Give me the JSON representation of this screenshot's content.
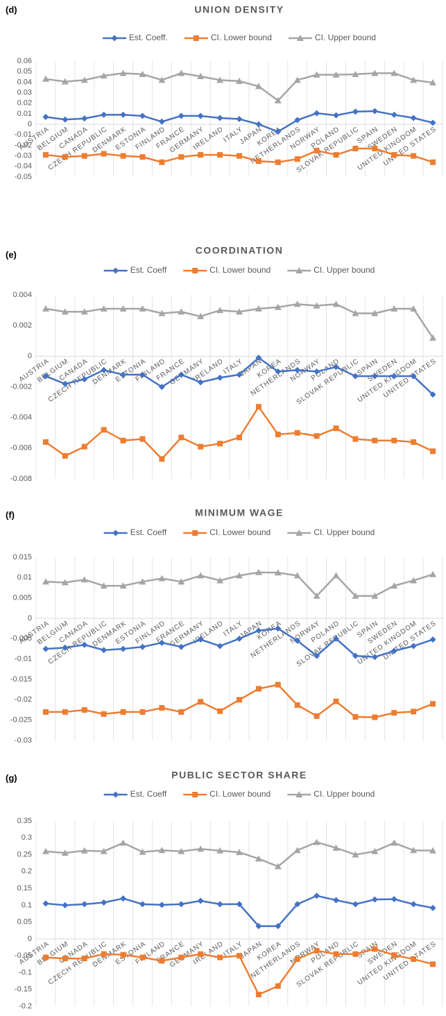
{
  "chart_data": [
    {
      "type": "line",
      "label": "(d)",
      "title": "UNION DENSITY",
      "categories": [
        "AUSTRIA",
        "BELGIUM",
        "CANADA",
        "CZECH REPUBLIC",
        "DENMARK",
        "ESTONIA",
        "FINLAND",
        "FRANCE",
        "GERMANY",
        "IRELAND",
        "ITALY",
        "JAPAN",
        "KOREA",
        "NETHERLANDS",
        "NORWAY",
        "POLAND",
        "SLOVAK REPUBLIC",
        "SPAIN",
        "SWEDEN",
        "UNITED KINGDOM",
        "UNITED STATES"
      ],
      "series": [
        {
          "name": "Est. Coeff.",
          "color": "#4472c4",
          "marker": "diamond",
          "values": [
            0.007,
            0.0045,
            0.0055,
            0.009,
            0.009,
            0.008,
            0.0025,
            0.008,
            0.008,
            0.006,
            0.005,
            0.0,
            -0.007,
            0.004,
            0.0105,
            0.0085,
            0.012,
            0.0125,
            0.009,
            0.006,
            0.0015
          ]
        },
        {
          "name": "CI. Lower bound",
          "color": "#ed7d31",
          "marker": "square",
          "values": [
            -0.029,
            -0.031,
            -0.03,
            -0.028,
            -0.03,
            -0.031,
            -0.036,
            -0.031,
            -0.029,
            -0.029,
            -0.03,
            -0.035,
            -0.036,
            -0.033,
            -0.025,
            -0.029,
            -0.023,
            -0.023,
            -0.029,
            -0.03,
            -0.036
          ]
        },
        {
          "name": "CI. Upper bound",
          "color": "#a5a5a5",
          "marker": "triangle",
          "values": [
            0.043,
            0.0405,
            0.042,
            0.046,
            0.0485,
            0.0475,
            0.042,
            0.0485,
            0.0455,
            0.042,
            0.041,
            0.036,
            0.0225,
            0.042,
            0.047,
            0.047,
            0.0475,
            0.0485,
            0.0485,
            0.042,
            0.0395
          ]
        }
      ],
      "ylim": [
        -0.05,
        0.06
      ],
      "yticks": [
        -0.05,
        -0.04,
        -0.03,
        -0.02,
        -0.01,
        0,
        0.01,
        0.02,
        0.03,
        0.04,
        0.05,
        0.06
      ],
      "vertical_grid": true
    },
    {
      "type": "line",
      "label": "(e)",
      "title": "COORDINATION",
      "categories": [
        "AUSTRIA",
        "BELGIUM",
        "CANADA",
        "CZECH REPUBLIC",
        "DENMARK",
        "ESTONIA",
        "FINLAND",
        "FRANCE",
        "GERMANY",
        "IRELAND",
        "ITALY",
        "JAPAN",
        "KOREA",
        "NETHERLANDS",
        "NORWAY",
        "POLAND",
        "SLOVAK REPUBLIC",
        "SPAIN",
        "SWEDEN",
        "UNITED KINGDOM",
        "UNITED STATES"
      ],
      "series": [
        {
          "name": "Est. Coeff",
          "color": "#4472c4",
          "marker": "diamond",
          "values": [
            -0.0013,
            -0.0018,
            -0.0015,
            -0.0009,
            -0.0012,
            -0.0012,
            -0.002,
            -0.0012,
            -0.0017,
            -0.0014,
            -0.0012,
            -0.0001,
            -0.001,
            -0.0009,
            -0.001,
            -0.0007,
            -0.0013,
            -0.0013,
            -0.0013,
            -0.0013,
            -0.0025
          ]
        },
        {
          "name": "CI. Lower bound",
          "color": "#ed7d31",
          "marker": "square",
          "values": [
            -0.0056,
            -0.0065,
            -0.0059,
            -0.0048,
            -0.0055,
            -0.0054,
            -0.0067,
            -0.0053,
            -0.0059,
            -0.0057,
            -0.0053,
            -0.0033,
            -0.0051,
            -0.005,
            -0.0052,
            -0.0047,
            -0.0054,
            -0.0055,
            -0.0055,
            -0.0056,
            -0.0062
          ]
        },
        {
          "name": "CI. Upper bound",
          "color": "#a5a5a5",
          "marker": "triangle",
          "values": [
            0.0031,
            0.0029,
            0.0029,
            0.0031,
            0.0031,
            0.0031,
            0.0028,
            0.0029,
            0.0026,
            0.003,
            0.0029,
            0.0031,
            0.0032,
            0.0034,
            0.0033,
            0.0034,
            0.0028,
            0.0028,
            0.0031,
            0.0031,
            0.0012
          ]
        }
      ],
      "ylim": [
        -0.008,
        0.004
      ],
      "yticks": [
        -0.008,
        -0.006,
        -0.004,
        -0.002,
        0,
        0.002,
        0.004
      ],
      "vertical_grid": true
    },
    {
      "type": "line",
      "label": "(f)",
      "title": "MINIMUM WAGE",
      "categories": [
        "AUSTRIA",
        "BELGIUM",
        "CANADA",
        "CZECH REPUBLIC",
        "DENMARK",
        "ESTONIA",
        "FINLAND",
        "FRANCE",
        "GERMANY",
        "IRELAND",
        "ITALY",
        "JAPAN",
        "KOREA",
        "NETHERLANDS",
        "NORWAY",
        "POLAND",
        "SLOVAK REPUBLIC",
        "SPAIN",
        "SWEDEN",
        "UNITED KINGDOM",
        "UNITED STATES"
      ],
      "series": [
        {
          "name": "Est. Coeff",
          "color": "#4472c4",
          "marker": "diamond",
          "values": [
            -0.0075,
            -0.0072,
            -0.0065,
            -0.0078,
            -0.0075,
            -0.007,
            -0.006,
            -0.007,
            -0.0052,
            -0.0068,
            -0.005,
            -0.003,
            -0.0025,
            -0.0055,
            -0.0092,
            -0.005,
            -0.0092,
            -0.0095,
            -0.008,
            -0.0068,
            -0.0052
          ]
        },
        {
          "name": "CI. Lower bound",
          "color": "#ed7d31",
          "marker": "square",
          "values": [
            -0.023,
            -0.023,
            -0.0225,
            -0.0235,
            -0.023,
            -0.023,
            -0.022,
            -0.023,
            -0.0205,
            -0.0228,
            -0.02,
            -0.0173,
            -0.0163,
            -0.0213,
            -0.024,
            -0.0204,
            -0.0242,
            -0.0243,
            -0.0232,
            -0.0229,
            -0.021
          ]
        },
        {
          "name": "CI. Upper bound",
          "color": "#a5a5a5",
          "marker": "triangle",
          "values": [
            0.009,
            0.0088,
            0.0095,
            0.008,
            0.008,
            0.009,
            0.0098,
            0.009,
            0.0105,
            0.0093,
            0.0105,
            0.0113,
            0.0112,
            0.0105,
            0.0055,
            0.0105,
            0.0055,
            0.0055,
            0.008,
            0.0093,
            0.0108
          ]
        }
      ],
      "ylim": [
        -0.03,
        0.015
      ],
      "yticks": [
        -0.03,
        -0.025,
        -0.02,
        -0.015,
        -0.01,
        -0.005,
        0,
        0.005,
        0.01,
        0.015
      ],
      "vertical_grid": true
    },
    {
      "type": "line",
      "label": "(g)",
      "title": "PUBLIC SECTOR SHARE",
      "categories": [
        "AUSTRIA",
        "BELGIUM",
        "CANADA",
        "CZECH REPUBLIC",
        "DENMARK",
        "ESTONIA",
        "FINLAND",
        "FRANCE",
        "GERMANY",
        "IRELAND",
        "ITALY",
        "JAPAN",
        "KOREA",
        "NETHERLANDS",
        "NORWAY",
        "POLAND",
        "SLOVAK REPUBLIC",
        "SPAIN",
        "SWEDEN",
        "UNITED KINGDOM",
        "UNITED STATES"
      ],
      "series": [
        {
          "name": "Est. Coeff",
          "color": "#4472c4",
          "marker": "diamond",
          "values": [
            0.105,
            0.1,
            0.103,
            0.108,
            0.12,
            0.103,
            0.101,
            0.103,
            0.113,
            0.103,
            0.103,
            0.038,
            0.038,
            0.103,
            0.128,
            0.115,
            0.103,
            0.117,
            0.118,
            0.103,
            0.092
          ]
        },
        {
          "name": "CI. Lower bound",
          "color": "#ed7d31",
          "marker": "square",
          "values": [
            -0.055,
            -0.058,
            -0.058,
            -0.045,
            -0.047,
            -0.055,
            -0.065,
            -0.055,
            -0.045,
            -0.055,
            -0.05,
            -0.165,
            -0.14,
            -0.06,
            -0.035,
            -0.045,
            -0.045,
            -0.03,
            -0.048,
            -0.06,
            -0.075
          ]
        },
        {
          "name": "CI. Upper bound",
          "color": "#a5a5a5",
          "marker": "triangle",
          "values": [
            0.26,
            0.255,
            0.262,
            0.26,
            0.285,
            0.258,
            0.263,
            0.26,
            0.267,
            0.262,
            0.257,
            0.238,
            0.215,
            0.263,
            0.287,
            0.27,
            0.25,
            0.26,
            0.285,
            0.263,
            0.262
          ]
        }
      ],
      "ylim": [
        -0.2,
        0.35
      ],
      "yticks": [
        -0.2,
        -0.15,
        -0.1,
        -0.05,
        0,
        0.05,
        0.1,
        0.15,
        0.2,
        0.25,
        0.3,
        0.35
      ],
      "vertical_grid": true
    }
  ]
}
